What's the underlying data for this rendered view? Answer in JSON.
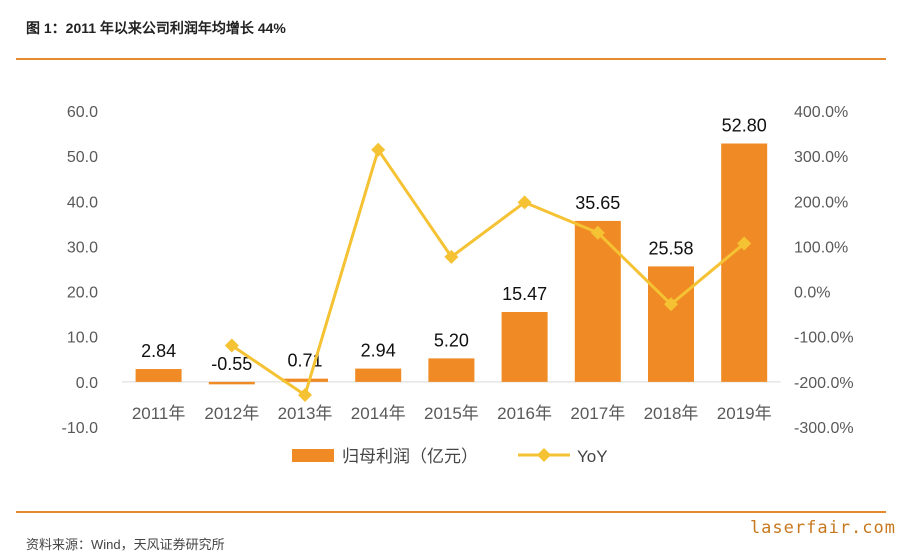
{
  "header": {
    "title": "图 1：2011 年以来公司利润年均增长 44%"
  },
  "footer": {
    "source": "资料来源：Wind，天风证券研究所",
    "watermark": "laserfair.com"
  },
  "chart_data": {
    "type": "bar+line",
    "categories": [
      "2011年",
      "2012年",
      "2013年",
      "2014年",
      "2015年",
      "2016年",
      "2017年",
      "2018年",
      "2019年"
    ],
    "series": [
      {
        "name": "归母利润（亿元）",
        "type": "bar",
        "axis": "left",
        "values": [
          2.84,
          -0.55,
          0.71,
          2.94,
          5.2,
          15.47,
          35.65,
          25.58,
          52.8
        ],
        "labels": [
          "2.84",
          "-0.55",
          "0.71",
          "2.94",
          "5.20",
          "15.47",
          "35.65",
          "25.58",
          "52.80"
        ]
      },
      {
        "name": "YoY",
        "type": "line",
        "axis": "right",
        "values": [
          null,
          -119.4,
          -229.1,
          314.1,
          76.9,
          197.5,
          130.4,
          -28.2,
          106.4
        ]
      }
    ],
    "y_left": {
      "min": -10,
      "max": 60,
      "ticks": [
        "60.0",
        "50.0",
        "40.0",
        "30.0",
        "20.0",
        "10.0",
        "0.0",
        "-10.0"
      ]
    },
    "y_right": {
      "min": -300,
      "max": 400,
      "ticks": [
        "400.0%",
        "300.0%",
        "200.0%",
        "100.0%",
        "0.0%",
        "-100.0%",
        "-200.0%",
        "-300.0%"
      ]
    },
    "legend": {
      "bar_label": "归母利润（亿元）",
      "line_label": "YoY",
      "position": "bottom"
    },
    "colors": {
      "bar": "#f08a24",
      "line": "#f5c233",
      "rule": "#e58a2e"
    }
  }
}
